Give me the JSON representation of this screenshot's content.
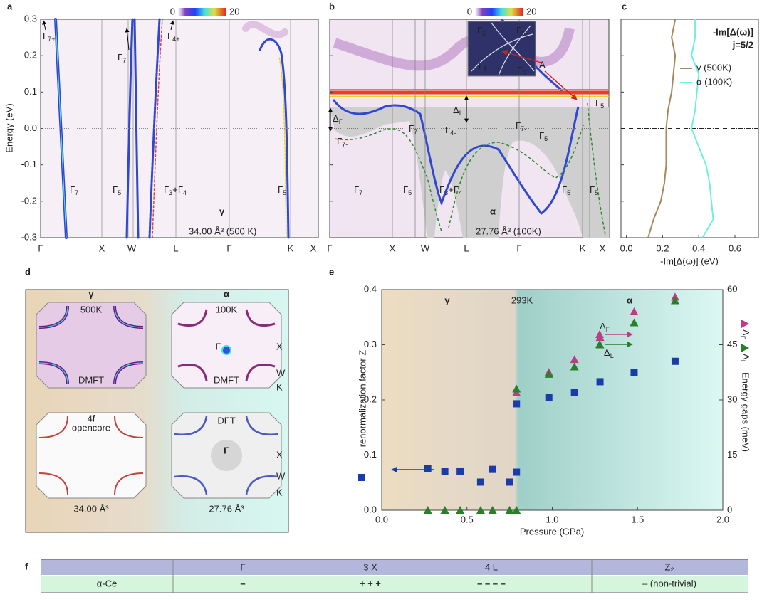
{
  "panel_labels": [
    "a",
    "b",
    "c",
    "d",
    "e",
    "f"
  ],
  "band_axes": {
    "ylabel": "Energy (eV)",
    "ylim": [
      -0.3,
      0.3
    ],
    "yticks": [
      0.3,
      0.2,
      0.1,
      {
        "value": 0,
        "label": "0.0"
      },
      -0.1,
      -0.2,
      -0.3
    ],
    "colorbar_ticks": [
      0,
      20
    ]
  },
  "panel_a": {
    "kpath": [
      "Γ",
      "X",
      "W",
      "L",
      "Γ",
      "K",
      "X"
    ],
    "phase": "γ",
    "volume": "34.00 Å³ (500 K)",
    "arrow_labels": [
      [
        "Γ",
        "7+"
      ],
      [
        "Γ",
        "7"
      ],
      [
        "Γ",
        "4+"
      ]
    ],
    "band_labels": [
      [
        "Γ",
        "7"
      ],
      [
        "Γ",
        "5"
      ],
      [
        "Γ",
        "3",
        "+Γ",
        "4"
      ],
      [
        "Γ",
        "5"
      ]
    ]
  },
  "panel_b": {
    "kpath": [
      "Γ",
      "X",
      "W",
      "L",
      "Γ",
      "K",
      "X"
    ],
    "phase": "α",
    "volume": "27.76 Å³ (100K)",
    "gap_labels": [
      [
        "Δ",
        "Γ"
      ],
      [
        "Δ",
        "L"
      ]
    ],
    "red_labels": [
      [
        "Γ",
        "7-"
      ],
      [
        "Γ",
        "4-"
      ],
      [
        "Γ",
        "7-"
      ]
    ],
    "state_labels": [
      [
        "Γ",
        "7"
      ],
      [
        "Γ",
        "5"
      ],
      [
        "Γ",
        "5"
      ]
    ],
    "band_labels": [
      [
        "Γ",
        "7"
      ],
      [
        "Γ",
        "5"
      ],
      [
        "Γ",
        "3",
        "+Γ",
        "4"
      ],
      [
        "Γ",
        "5"
      ],
      [
        "Γ",
        "5"
      ]
    ],
    "inset_labels": [
      [
        "Γ",
        "5"
      ],
      [
        "Γ",
        "5"
      ],
      [
        "Γ",
        "5"
      ],
      [
        "Γ",
        "5"
      ]
    ],
    "marker": "A"
  },
  "chart_data": [
    {
      "type": "line",
      "title": "-Im[Δ(ω)]",
      "subtitle": "j=5/2",
      "xlabel": "-Im[Δ(ω)] (eV)",
      "y": [
        0.3,
        0.25,
        0.2,
        0.15,
        0.1,
        0.05,
        0,
        -0.05,
        -0.1,
        -0.15,
        -0.2,
        -0.25,
        -0.3
      ],
      "xlim": [
        -0.03,
        0.73
      ],
      "xticks": [
        {
          "value": 0,
          "label": "0.0"
        },
        0.2,
        0.4,
        0.6
      ],
      "ylim": [
        -0.3,
        0.3
      ],
      "legend": "upper right",
      "series": [
        {
          "name": "γ (500K)",
          "color": "#a8875c",
          "values": [
            0.27,
            0.25,
            0.27,
            0.26,
            0.25,
            0.23,
            0.22,
            0.22,
            0.22,
            0.21,
            0.19,
            0.15,
            0.12
          ]
        },
        {
          "name": "α (100K)",
          "color": "#6fefdf",
          "values": [
            0.38,
            0.38,
            0.36,
            0.4,
            0.39,
            0.38,
            0.36,
            0.4,
            0.44,
            0.46,
            0.47,
            0.48,
            0.42
          ]
        }
      ]
    },
    {
      "type": "scatter",
      "xlabel": "Pressure (GPa)",
      "ylabel": "renormalization factor Z",
      "y2label": "Energy gaps (meV)",
      "annotations": [
        "γ",
        "293K",
        "α"
      ],
      "xlim": [
        0,
        2
      ],
      "xticks": [
        {
          "value": 0,
          "label": "0.0"
        },
        0.5,
        {
          "value": 1,
          "label": "1.0"
        },
        1.5,
        {
          "value": 2,
          "label": "2.0"
        }
      ],
      "ylim": [
        0,
        0.4
      ],
      "yticks": [
        {
          "value": 0,
          "label": "0.0"
        },
        0.1,
        0.2,
        0.3,
        0.4
      ],
      "y2lim": [
        0,
        60
      ],
      "y2ticks": [
        0,
        15,
        30,
        45,
        60
      ],
      "series": [
        {
          "marker": "square",
          "color": "#1a3ca8",
          "x": [
            0.27,
            0.37,
            0.46,
            0.58,
            0.65,
            0.75,
            0.79,
            0.79,
            0.98,
            1.13,
            1.28,
            1.48,
            1.72
          ],
          "values": [
            0.075,
            0.07,
            0.071,
            0.051,
            0.074,
            0.051,
            0.069,
            0.193,
            0.205,
            0.214,
            0.233,
            0.25,
            0.27
          ]
        },
        {
          "name": [
            "Δ",
            "Γ"
          ],
          "marker": "triangle",
          "color": "#c23a85",
          "axis": "y2",
          "x": [
            0.79,
            0.98,
            1.13,
            1.28,
            1.48,
            1.72
          ],
          "values": [
            32,
            37.5,
            41,
            47,
            54,
            58
          ]
        },
        {
          "name": [
            "Δ",
            "L"
          ],
          "marker": "triangle",
          "color": "#2a7f2a",
          "axis": "y2",
          "x": [
            0.27,
            0.37,
            0.46,
            0.58,
            0.65,
            0.75,
            0.79,
            0.79,
            0.98,
            1.13,
            1.28,
            1.48,
            1.72
          ],
          "values": [
            0,
            0,
            0,
            0,
            0,
            0,
            0,
            33,
            37,
            39,
            45,
            51,
            57
          ]
        }
      ]
    }
  ],
  "panel_d": {
    "gamma": {
      "phase": "γ",
      "temperature": "500K",
      "dmft": "DMFT",
      "open_core": [
        "4f",
        "opencore"
      ],
      "volume": "34.00 Å³"
    },
    "alpha": {
      "phase": "α",
      "temperature": "100K",
      "dmft": "DMFT",
      "dft": "DFT",
      "center": "Γ",
      "points": [
        "X",
        "W",
        "K"
      ],
      "volume": "27.76 Å³"
    }
  },
  "table": {
    "header": [
      "Γ",
      "3 X",
      "4 L",
      "Z₂"
    ],
    "rows": [
      [
        "α-Ce",
        "–",
        "+ + +",
        "– – – –",
        "– (non-trivial)"
      ]
    ]
  }
}
